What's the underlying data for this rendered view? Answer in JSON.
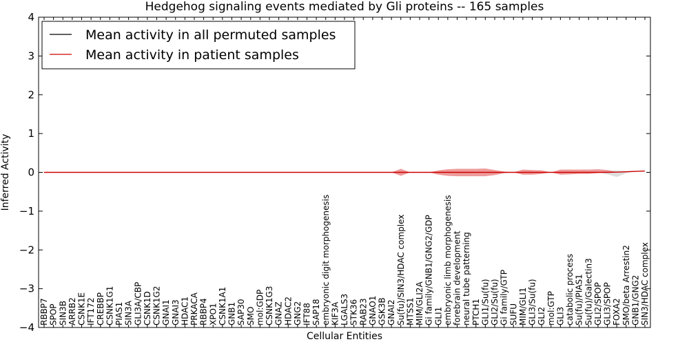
{
  "chart_data": {
    "type": "line",
    "title": "Hedgehog signaling events mediated by Gli proteins -- 165 samples",
    "xlabel": "Cellular Entities",
    "ylabel": "Inferred Activity",
    "ylim": [
      -4,
      4
    ],
    "yticks": [
      -4,
      -3,
      -2,
      -1,
      0,
      1,
      2,
      3,
      4
    ],
    "ytick_labels": [
      "−4",
      "−3",
      "−2",
      "−1",
      "0",
      "1",
      "2",
      "3",
      "4"
    ],
    "grid": false,
    "legend_position": "top-left",
    "categories": [
      "RBBP7",
      "SPOP",
      "SIN3B",
      "ARRB2",
      "CSNK1E",
      "IFT172",
      "CREBBP",
      "CSNK1G1",
      "PIAS1",
      "SIN3A",
      "GLI3A/CBP",
      "CSNK1D",
      "CSNK1G2",
      "GNAI1",
      "GNAI3",
      "HDAC1",
      "PRKACA",
      "RBBP4",
      "XPO1",
      "CSNK1A1",
      "GNB1",
      "SAP30",
      "SMO",
      "mol:GDP",
      "CSNK1G3",
      "GNAZ",
      "HDAC2",
      "GNG2",
      "IFT88",
      "SAP18",
      "embryonic digit morphogenesis",
      "KIF3A",
      "LGALS3",
      "STK36",
      "RAB23",
      "GNAO1",
      "GSK3B",
      "GNAI2",
      "Su(fu)/SIN3/HDAC complex",
      "MTSS1",
      "MIM/GLI2A",
      "Gi family/GNB1/GNG2/GDP",
      "GLI1",
      "embryonic limb morphogenesis",
      "forebrain development",
      "neural tube patterning",
      "PTCH1",
      "GLI1/Su(fu)",
      "GLI2/Su(fu)",
      "Gi family/GTP",
      "SUFU",
      "MIM/GLI1",
      "GLI3/Su(fu)",
      "GLI2",
      "mol:GTP",
      "GLI3",
      "catabolic process",
      "Su(fu)/PIAS1",
      "Su(fu)/Galectin3",
      "GLI2/SPOP",
      "GLI3/SPOP",
      "FOXA2",
      "SMO/beta Arrestin2",
      "GNB1/GNG2",
      "SIN3/HDAC complex"
    ],
    "series": [
      {
        "name": "Mean activity in all permuted samples",
        "color": "#000000",
        "values": [
          0,
          0,
          0,
          0,
          0,
          0,
          0,
          0,
          0,
          0,
          0,
          0,
          0,
          0,
          0,
          0,
          0,
          0,
          0,
          0,
          0,
          0,
          0,
          0,
          0,
          0,
          0,
          0,
          0,
          0,
          0,
          0,
          0,
          0,
          0,
          0,
          0,
          0,
          0,
          0,
          0,
          0,
          0,
          0,
          0,
          0,
          0,
          0,
          0,
          0,
          0,
          0,
          0,
          0,
          0,
          0,
          0,
          0,
          0,
          0,
          0,
          0.005,
          0.015,
          0.025,
          0.035
        ],
        "band_upper": [
          0,
          0,
          0,
          0,
          0,
          0,
          0,
          0,
          0,
          0,
          0,
          0,
          0,
          0,
          0,
          0,
          0,
          0,
          0,
          0,
          0,
          0,
          0,
          0,
          0,
          0,
          0,
          0,
          0,
          0,
          0,
          0,
          0,
          0,
          0,
          0,
          0,
          0,
          0,
          0,
          0,
          0,
          0,
          0,
          0,
          0,
          0,
          0,
          0,
          0,
          0,
          0,
          0,
          0,
          0,
          0,
          0,
          0,
          0,
          0,
          0.04,
          0.05,
          0.03,
          0.03,
          0.04
        ],
        "band_lower": [
          0,
          0,
          0,
          0,
          0,
          0,
          0,
          0,
          0,
          0,
          0,
          0,
          0,
          0,
          0,
          0,
          0,
          0,
          0,
          0,
          0,
          0,
          0,
          0,
          0,
          0,
          0,
          0,
          0,
          0,
          0,
          0,
          0,
          0,
          0,
          0,
          0,
          0,
          0,
          0,
          0,
          0,
          0,
          0,
          0,
          0,
          0,
          0,
          0,
          0,
          0,
          0,
          0,
          0,
          0,
          0,
          0,
          0,
          0,
          0,
          -0.05,
          -0.12,
          -0.02,
          0.02,
          0.03
        ],
        "band_color": "#c8c8c8"
      },
      {
        "name": "Mean activity in patient samples",
        "color": "#cc0000",
        "values": [
          0,
          0,
          0,
          0,
          0,
          0,
          0,
          0,
          0,
          0,
          0,
          0,
          0,
          0,
          0,
          0,
          0,
          0,
          0,
          0,
          0,
          0,
          0,
          0,
          0,
          0,
          0,
          0,
          0,
          0,
          0,
          0,
          0,
          0,
          0,
          0,
          0,
          0,
          0,
          0,
          0,
          0,
          0,
          0,
          0,
          0,
          0,
          0,
          0,
          0,
          0,
          0,
          0,
          0,
          0,
          0,
          0,
          0,
          0,
          0,
          0,
          0.005,
          0.015,
          0.025,
          0.035
        ],
        "band_upper": [
          0,
          0,
          0,
          0,
          0,
          0,
          0,
          0,
          0,
          0,
          0,
          0,
          0,
          0,
          0,
          0,
          0,
          0,
          0,
          0,
          0,
          0,
          0,
          0,
          0,
          0,
          0,
          0,
          0,
          0,
          0,
          0,
          0,
          0,
          0,
          0,
          0,
          0,
          0,
          0,
          0,
          0,
          0,
          0,
          0,
          0,
          0,
          0,
          0,
          0,
          0,
          0,
          0,
          0,
          0,
          0,
          0,
          0,
          0,
          0,
          0,
          0.01,
          0.02,
          0.03,
          0.04
        ],
        "band_lower": [
          0,
          0,
          0,
          0,
          0,
          0,
          0,
          0,
          0,
          0,
          0,
          0,
          0,
          0,
          0,
          0,
          0,
          0,
          0,
          0,
          0,
          0,
          0,
          0,
          0,
          0,
          0,
          0,
          0,
          0,
          0,
          0,
          0,
          0,
          0,
          0,
          0,
          0,
          0,
          0,
          0,
          0,
          0,
          0,
          0,
          0,
          0,
          0,
          0,
          0,
          0,
          0,
          0,
          0,
          0,
          0,
          0,
          0,
          0,
          0,
          0,
          0,
          0.01,
          0.02,
          0.03
        ],
        "band_color": "#e87a7a",
        "band_bumps": [
          {
            "from": 37,
            "to": 39,
            "upper": [
              0,
              0.09,
              0
            ],
            "lower": [
              0,
              -0.09,
              0
            ]
          },
          {
            "from": 41,
            "to": 49,
            "upper": [
              0,
              0.05,
              0.08,
              0.09,
              0.09,
              0.09,
              0.1,
              0.06,
              0.02
            ],
            "lower": [
              0,
              -0.06,
              -0.09,
              -0.1,
              -0.1,
              -0.1,
              -0.1,
              -0.07,
              -0.02
            ]
          },
          {
            "from": 50,
            "to": 54,
            "upper": [
              0,
              0.07,
              0.06,
              0.05,
              0
            ],
            "lower": [
              0,
              -0.06,
              -0.06,
              -0.04,
              0
            ]
          },
          {
            "from": 54,
            "to": 60,
            "upper": [
              0,
              0.07,
              0.07,
              0.07,
              0.07,
              0.08,
              0.06
            ],
            "lower": [
              0,
              -0.06,
              -0.05,
              -0.04,
              -0.04,
              -0.02,
              0
            ]
          }
        ]
      }
    ]
  }
}
